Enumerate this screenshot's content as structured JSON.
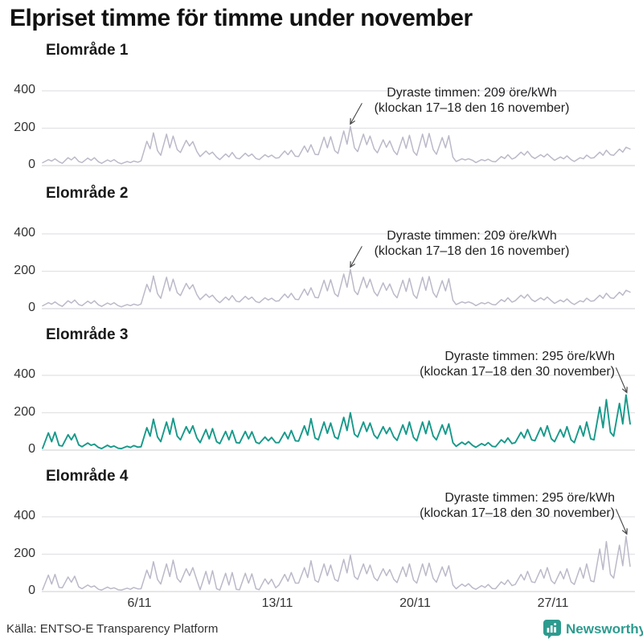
{
  "title": "Elpriset timme för timme under november",
  "source": "Källa: ENTSO-E Transparency Platform",
  "branding": {
    "name": "Newsworthy",
    "color": "#2D9B8F",
    "icon": "bar-chart-bubble-icon"
  },
  "colors": {
    "line_default": "#BBB9C8",
    "line_highlight": "#17998A",
    "grid": "#E2E2E6",
    "zero_line": "#D8D8DC",
    "axis_text": "#333333",
    "annotation_text": "#222222",
    "arrow": "#444444",
    "title_text": "#111111"
  },
  "y_axis": {
    "ticks": [
      400,
      200,
      0
    ],
    "unit": "öre/kWh",
    "range": [
      0,
      430
    ]
  },
  "x_axis": {
    "month": "november",
    "days_shown": 30,
    "ticks": [
      {
        "day": 6,
        "label": "6/11"
      },
      {
        "day": 13,
        "label": "13/11"
      },
      {
        "day": 20,
        "label": "20/11"
      },
      {
        "day": 27,
        "label": "27/11"
      }
    ]
  },
  "profile_hours": [
    2,
    9,
    13,
    17,
    22
  ],
  "chart_data": [
    {
      "type": "line",
      "title": "Elområde 1",
      "unit": "öre/kWh",
      "color": "#BBB9C8",
      "highlight": false,
      "annotation": {
        "line1": "Dyraste timmen: 209 öre/kWh",
        "line2": "(klockan 17–18 den 16 november)",
        "align": "center",
        "arrow_dir": "down-left",
        "peak_day": 16,
        "peak_hour": "17–18",
        "peak_value": 209
      },
      "daily_profile": [
        [
          15,
          32,
          24,
          36,
          20
        ],
        [
          12,
          42,
          30,
          46,
          22
        ],
        [
          16,
          40,
          28,
          42,
          20
        ],
        [
          12,
          30,
          22,
          32,
          16
        ],
        [
          10,
          22,
          16,
          24,
          18
        ],
        [
          25,
          130,
          90,
          175,
          80
        ],
        [
          55,
          168,
          95,
          158,
          85
        ],
        [
          70,
          135,
          105,
          128,
          75
        ],
        [
          48,
          78,
          60,
          72,
          45
        ],
        [
          32,
          62,
          46,
          70,
          40
        ],
        [
          36,
          66,
          50,
          62,
          38
        ],
        [
          32,
          58,
          46,
          56,
          40
        ],
        [
          42,
          78,
          58,
          82,
          50
        ],
        [
          48,
          105,
          72,
          112,
          60
        ],
        [
          58,
          152,
          95,
          155,
          80
        ],
        [
          65,
          185,
          115,
          209,
          95
        ],
        [
          75,
          168,
          112,
          158,
          90
        ],
        [
          68,
          138,
          98,
          132,
          78
        ],
        [
          58,
          152,
          92,
          162,
          75
        ],
        [
          55,
          168,
          98,
          172,
          85
        ],
        [
          60,
          150,
          95,
          160,
          45
        ],
        [
          22,
          36,
          30,
          36,
          28
        ],
        [
          16,
          32,
          26,
          34,
          22
        ],
        [
          20,
          48,
          38,
          58,
          35
        ],
        [
          42,
          72,
          56,
          76,
          48
        ],
        [
          38,
          58,
          46,
          62,
          42
        ],
        [
          28,
          46,
          36,
          52,
          32
        ],
        [
          22,
          42,
          36,
          56,
          40
        ],
        [
          42,
          72,
          55,
          82,
          58
        ],
        [
          55,
          88,
          72,
          98,
          88
        ]
      ]
    },
    {
      "type": "line",
      "title": "Elområde 2",
      "unit": "öre/kWh",
      "color": "#BBB9C8",
      "highlight": false,
      "annotation": {
        "line1": "Dyraste timmen: 209 öre/kWh",
        "line2": "(klockan 17–18 den 16 november)",
        "align": "center",
        "arrow_dir": "down-left",
        "peak_day": 16,
        "peak_hour": "17–18",
        "peak_value": 209
      },
      "daily_profile": [
        [
          15,
          32,
          24,
          36,
          20
        ],
        [
          12,
          42,
          30,
          46,
          22
        ],
        [
          16,
          40,
          28,
          42,
          20
        ],
        [
          12,
          30,
          22,
          32,
          16
        ],
        [
          10,
          22,
          16,
          24,
          18
        ],
        [
          25,
          130,
          90,
          175,
          80
        ],
        [
          55,
          168,
          95,
          158,
          85
        ],
        [
          70,
          135,
          105,
          128,
          75
        ],
        [
          48,
          78,
          60,
          72,
          45
        ],
        [
          32,
          62,
          46,
          70,
          40
        ],
        [
          36,
          66,
          50,
          62,
          38
        ],
        [
          32,
          58,
          46,
          56,
          40
        ],
        [
          42,
          78,
          58,
          82,
          50
        ],
        [
          48,
          105,
          72,
          112,
          60
        ],
        [
          58,
          152,
          95,
          155,
          80
        ],
        [
          65,
          185,
          115,
          209,
          95
        ],
        [
          75,
          168,
          112,
          158,
          90
        ],
        [
          68,
          138,
          98,
          132,
          78
        ],
        [
          58,
          152,
          92,
          162,
          75
        ],
        [
          55,
          168,
          98,
          172,
          85
        ],
        [
          60,
          150,
          95,
          160,
          45
        ],
        [
          22,
          36,
          30,
          36,
          28
        ],
        [
          16,
          32,
          26,
          34,
          22
        ],
        [
          20,
          48,
          38,
          58,
          35
        ],
        [
          42,
          72,
          56,
          76,
          48
        ],
        [
          38,
          58,
          46,
          62,
          42
        ],
        [
          28,
          46,
          36,
          52,
          32
        ],
        [
          22,
          42,
          36,
          56,
          40
        ],
        [
          42,
          72,
          55,
          82,
          58
        ],
        [
          55,
          88,
          72,
          98,
          88
        ]
      ]
    },
    {
      "type": "line",
      "title": "Elområde 3",
      "unit": "öre/kWh",
      "color": "#17998A",
      "highlight": true,
      "annotation": {
        "line1": "Dyraste timmen: 295 öre/kWh",
        "line2": "(klockan 17–18 den 30 november)",
        "align": "right",
        "arrow_dir": "down-right",
        "peak_day": 30,
        "peak_hour": "17–18",
        "peak_value": 295
      },
      "daily_profile": [
        [
          10,
          92,
          45,
          96,
          25
        ],
        [
          22,
          82,
          55,
          86,
          28
        ],
        [
          18,
          38,
          26,
          32,
          14
        ],
        [
          8,
          26,
          16,
          22,
          10
        ],
        [
          8,
          20,
          14,
          24,
          16
        ],
        [
          18,
          120,
          75,
          165,
          70
        ],
        [
          45,
          150,
          85,
          170,
          75
        ],
        [
          55,
          125,
          90,
          130,
          65
        ],
        [
          40,
          110,
          60,
          115,
          45
        ],
        [
          35,
          100,
          55,
          105,
          40
        ],
        [
          38,
          100,
          60,
          98,
          42
        ],
        [
          35,
          70,
          50,
          68,
          40
        ],
        [
          40,
          95,
          60,
          105,
          50
        ],
        [
          48,
          130,
          80,
          168,
          65
        ],
        [
          55,
          150,
          90,
          145,
          70
        ],
        [
          60,
          175,
          105,
          200,
          85
        ],
        [
          70,
          150,
          100,
          145,
          80
        ],
        [
          62,
          125,
          88,
          120,
          70
        ],
        [
          52,
          135,
          85,
          150,
          68
        ],
        [
          50,
          150,
          88,
          155,
          75
        ],
        [
          55,
          135,
          85,
          140,
          40
        ],
        [
          20,
          42,
          30,
          45,
          25
        ],
        [
          15,
          35,
          25,
          40,
          20
        ],
        [
          18,
          55,
          40,
          65,
          35
        ],
        [
          40,
          95,
          65,
          110,
          55
        ],
        [
          50,
          120,
          75,
          130,
          60
        ],
        [
          45,
          110,
          70,
          125,
          55
        ],
        [
          40,
          130,
          75,
          150,
          60
        ],
        [
          55,
          230,
          120,
          270,
          95
        ],
        [
          75,
          250,
          140,
          295,
          140
        ]
      ]
    },
    {
      "type": "line",
      "title": "Elområde 4",
      "unit": "öre/kWh",
      "color": "#BBB9C8",
      "highlight": false,
      "annotation": {
        "line1": "Dyraste timmen: 295 öre/kWh",
        "line2": "(klockan 17–18 den 30 november)",
        "align": "right",
        "arrow_dir": "down-right",
        "peak_day": 30,
        "peak_hour": "17–18",
        "peak_value": 295
      },
      "daily_profile": [
        [
          10,
          88,
          40,
          92,
          22
        ],
        [
          20,
          78,
          50,
          82,
          25
        ],
        [
          15,
          35,
          24,
          30,
          12
        ],
        [
          8,
          24,
          15,
          20,
          10
        ],
        [
          8,
          18,
          12,
          22,
          14
        ],
        [
          15,
          115,
          70,
          160,
          65
        ],
        [
          40,
          148,
          80,
          168,
          70
        ],
        [
          50,
          122,
          85,
          128,
          60
        ],
        [
          10,
          108,
          40,
          112,
          15
        ],
        [
          8,
          98,
          35,
          102,
          12
        ],
        [
          10,
          98,
          45,
          95,
          15
        ],
        [
          10,
          68,
          40,
          66,
          20
        ],
        [
          35,
          92,
          55,
          102,
          45
        ],
        [
          45,
          128,
          75,
          165,
          60
        ],
        [
          50,
          148,
          85,
          142,
          65
        ],
        [
          55,
          172,
          100,
          195,
          80
        ],
        [
          65,
          148,
          95,
          142,
          75
        ],
        [
          58,
          122,
          85,
          118,
          65
        ],
        [
          48,
          132,
          80,
          148,
          62
        ],
        [
          45,
          148,
          85,
          152,
          70
        ],
        [
          50,
          132,
          82,
          138,
          35
        ],
        [
          15,
          40,
          28,
          42,
          20
        ],
        [
          12,
          32,
          22,
          38,
          16
        ],
        [
          15,
          52,
          38,
          62,
          32
        ],
        [
          38,
          92,
          62,
          108,
          52
        ],
        [
          48,
          118,
          72,
          128,
          58
        ],
        [
          42,
          108,
          68,
          122,
          52
        ],
        [
          38,
          128,
          72,
          148,
          58
        ],
        [
          52,
          228,
          118,
          268,
          92
        ],
        [
          72,
          248,
          138,
          295,
          135
        ]
      ]
    }
  ]
}
